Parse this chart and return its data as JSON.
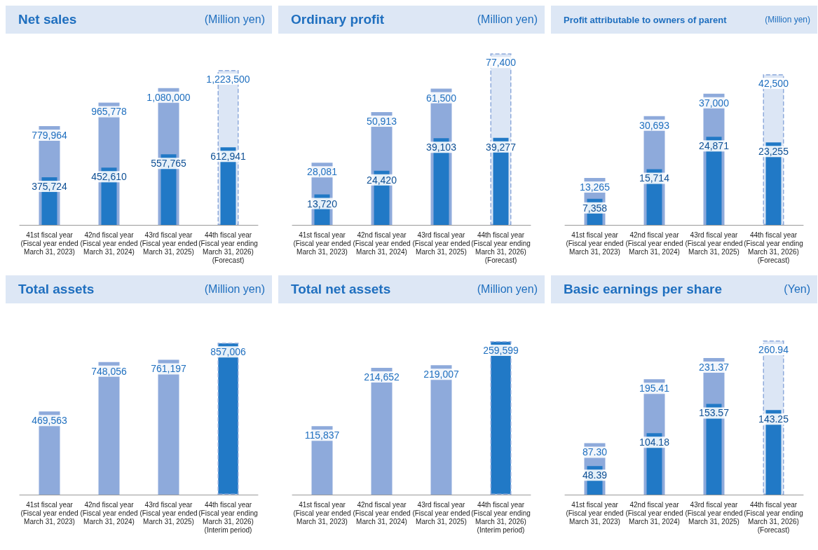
{
  "chart_data": [
    {
      "type": "bar",
      "title": "Net sales",
      "subtitle": "(Million yen)",
      "categories": [
        "41st fiscal year\n(Fiscal year ended\nMarch 31, 2023)",
        "42nd fiscal year\n(Fiscal year ended\nMarch 31, 2024)",
        "43rd fiscal year\n(Fiscal year ended\nMarch 31, 2025)",
        "44th fiscal year\n(Fiscal year ending\nMarch 31, 2026)\n(Forecast)"
      ],
      "series": [
        {
          "color": "#8eaadb",
          "colors": [
            "#8eaadb",
            "#8eaadb",
            "#8eaadb",
            "#dce6f5"
          ],
          "values": [
            779964,
            965778,
            1080000,
            1223500
          ],
          "value_labels": [
            "779,964",
            "965,778",
            "1,080,000",
            "1,223,500"
          ]
        },
        {
          "color": "#2179c6",
          "values": [
            375724,
            452610,
            557765,
            612941
          ],
          "value_labels": [
            "375,724",
            "452,610",
            "557,765",
            "612,941"
          ]
        }
      ]
    },
    {
      "type": "bar",
      "title": "Ordinary profit",
      "subtitle": "(Million yen)",
      "categories": [
        "41st fiscal year\n(Fiscal year ended\nMarch 31, 2023)",
        "42nd fiscal year\n(Fiscal year ended\nMarch 31, 2024)",
        "43rd fiscal year\n(Fiscal year ended\nMarch 31, 2025)",
        "44th fiscal year\n(Fiscal year ending\nMarch 31, 2026)\n(Forecast)"
      ],
      "series": [
        {
          "color": "#8eaadb",
          "colors": [
            "#8eaadb",
            "#8eaadb",
            "#8eaadb",
            "#dce6f5"
          ],
          "values": [
            28081,
            50913,
            61500,
            77400
          ],
          "value_labels": [
            "28,081",
            "50,913",
            "61,500",
            "77,400"
          ]
        },
        {
          "color": "#2179c6",
          "values": [
            13720,
            24420,
            39103,
            39277
          ],
          "value_labels": [
            "13,720",
            "24,420",
            "39,103",
            "39,277"
          ]
        }
      ]
    },
    {
      "type": "bar",
      "title": "Profit attributable to owners of parent",
      "subtitle": "(Million yen)",
      "categories": [
        "41st fiscal year\n(Fiscal year ended\nMarch 31, 2023)",
        "42nd fiscal year\n(Fiscal year ended\nMarch 31, 2024)",
        "43rd fiscal year\n(Fiscal year ended\nMarch 31, 2025)",
        "44th fiscal year\n(Fiscal year ending\nMarch 31, 2026)\n(Forecast)"
      ],
      "series": [
        {
          "color": "#8eaadb",
          "colors": [
            "#8eaadb",
            "#8eaadb",
            "#8eaadb",
            "#dce6f5"
          ],
          "values": [
            13265,
            30693,
            37000,
            42500
          ],
          "value_labels": [
            "13,265",
            "30,693",
            "37,000",
            "42,500"
          ]
        },
        {
          "color": "#2179c6",
          "values": [
            7358,
            15714,
            24871,
            23255
          ],
          "value_labels": [
            "7,358",
            "15,714",
            "24,871",
            "23,255"
          ]
        }
      ]
    },
    {
      "type": "bar",
      "title": "Total assets",
      "subtitle": "(Million yen)",
      "categories": [
        "41st fiscal year\n(Fiscal year ended\nMarch 31, 2023)",
        "42nd fiscal year\n(Fiscal year ended\nMarch 31, 2024)",
        "43rd fiscal year\n(Fiscal year ended\nMarch 31, 2025)",
        "44th fiscal year\n(Fiscal year ending\nMarch 31, 2026)\n(Interim period)"
      ],
      "series": [
        {
          "color": "#8eaadb",
          "colors": [
            "#8eaadb",
            "#8eaadb",
            "#8eaadb",
            "#2179c6"
          ],
          "values": [
            469563,
            748056,
            761197,
            857006
          ],
          "value_labels": [
            "469,563",
            "748,056",
            "761,197",
            "857,006"
          ]
        }
      ]
    },
    {
      "type": "bar",
      "title": "Total net assets",
      "subtitle": "(Million yen)",
      "categories": [
        "41st fiscal year\n(Fiscal year ended\nMarch 31, 2023)",
        "42nd fiscal year\n(Fiscal year ended\nMarch 31, 2024)",
        "43rd fiscal year\n(Fiscal year ended\nMarch 31, 2025)",
        "44th fiscal year\n(Fiscal year ending\nMarch 31, 2026)\n(Interim period)"
      ],
      "series": [
        {
          "color": "#8eaadb",
          "colors": [
            "#8eaadb",
            "#8eaadb",
            "#8eaadb",
            "#2179c6"
          ],
          "values": [
            115837,
            214652,
            219007,
            259599
          ],
          "value_labels": [
            "115,837",
            "214,652",
            "219,007",
            "259,599"
          ]
        }
      ]
    },
    {
      "type": "bar",
      "title": "Basic earnings per share",
      "subtitle": "(Yen)",
      "categories": [
        "41st fiscal year\n(Fiscal year ended\nMarch 31, 2023)",
        "42nd fiscal year\n(Fiscal year ended\nMarch 31, 2024)",
        "43rd fiscal year\n(Fiscal year ended\nMarch 31, 2025)",
        "44th fiscal year\n(Fiscal year ending\nMarch 31, 2026)\n(Forecast)"
      ],
      "series": [
        {
          "color": "#8eaadb",
          "colors": [
            "#8eaadb",
            "#8eaadb",
            "#8eaadb",
            "#dce6f5"
          ],
          "values": [
            87.3,
            195.41,
            231.37,
            260.94
          ],
          "value_labels": [
            "87.30",
            "195.41",
            "231.37",
            "260.94"
          ]
        },
        {
          "color": "#2179c6",
          "values": [
            48.39,
            104.18,
            153.57,
            143.25
          ],
          "value_labels": [
            "48.39",
            "104.18",
            "153.57",
            "143.25"
          ]
        }
      ]
    }
  ]
}
